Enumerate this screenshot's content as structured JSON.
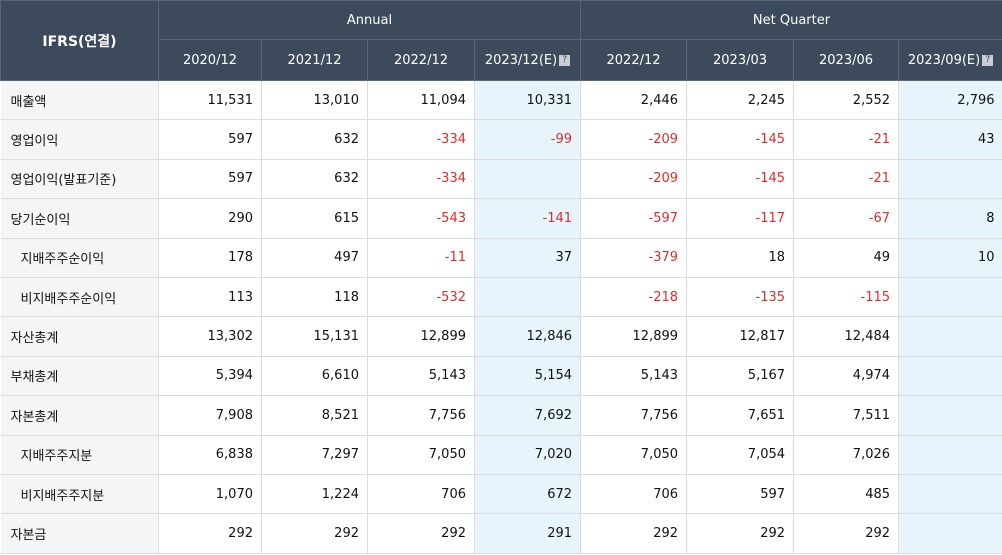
{
  "header": {
    "corner": "IFRS(연결)",
    "group_annual": "Annual",
    "group_quarter": "Net Quarter",
    "columns": [
      "2020/12",
      "2021/12",
      "2022/12",
      "2023/12(E)",
      "2022/12",
      "2023/03",
      "2023/06",
      "2023/09(E)"
    ],
    "estimate_icon": "info-icon"
  },
  "rows": [
    {
      "label": "매출액",
      "values": [
        "11,531",
        "13,010",
        "11,094",
        "10,331",
        "2,446",
        "2,245",
        "2,552",
        "2,796"
      ]
    },
    {
      "label": "영업이익",
      "values": [
        "597",
        "632",
        "-334",
        "-99",
        "-209",
        "-145",
        "-21",
        "43"
      ]
    },
    {
      "label": "영업이익(발표기준)",
      "values": [
        "597",
        "632",
        "-334",
        "",
        "-209",
        "-145",
        "-21",
        ""
      ]
    },
    {
      "label": "당기순이익",
      "values": [
        "290",
        "615",
        "-543",
        "-141",
        "-597",
        "-117",
        "-67",
        "8"
      ]
    },
    {
      "label": "지배주주순이익",
      "values": [
        "178",
        "497",
        "-11",
        "37",
        "-379",
        "18",
        "49",
        "10"
      ]
    },
    {
      "label": "비지배주주순이익",
      "values": [
        "113",
        "118",
        "-532",
        "",
        "-218",
        "-135",
        "-115",
        ""
      ]
    },
    {
      "label": "자산총계",
      "values": [
        "13,302",
        "15,131",
        "12,899",
        "12,846",
        "12,899",
        "12,817",
        "12,484",
        ""
      ]
    },
    {
      "label": "부채총계",
      "values": [
        "5,394",
        "6,610",
        "5,143",
        "5,154",
        "5,143",
        "5,167",
        "4,974",
        ""
      ]
    },
    {
      "label": "자본총계",
      "values": [
        "7,908",
        "8,521",
        "7,756",
        "7,692",
        "7,756",
        "7,651",
        "7,511",
        ""
      ]
    },
    {
      "label": "지배주주지분",
      "values": [
        "6,838",
        "7,297",
        "7,050",
        "7,020",
        "7,050",
        "7,054",
        "7,026",
        ""
      ]
    },
    {
      "label": "비지배주주지분",
      "values": [
        "1,070",
        "1,224",
        "706",
        "672",
        "706",
        "597",
        "485",
        ""
      ]
    },
    {
      "label": "자본금",
      "values": [
        "292",
        "292",
        "292",
        "291",
        "292",
        "292",
        "292",
        ""
      ]
    }
  ],
  "colors": {
    "header_bg": "#3d4a5c",
    "estimate_bg": "#e8f4fb",
    "negative": "#e22b2b",
    "label_bg": "#f4f5f7"
  }
}
